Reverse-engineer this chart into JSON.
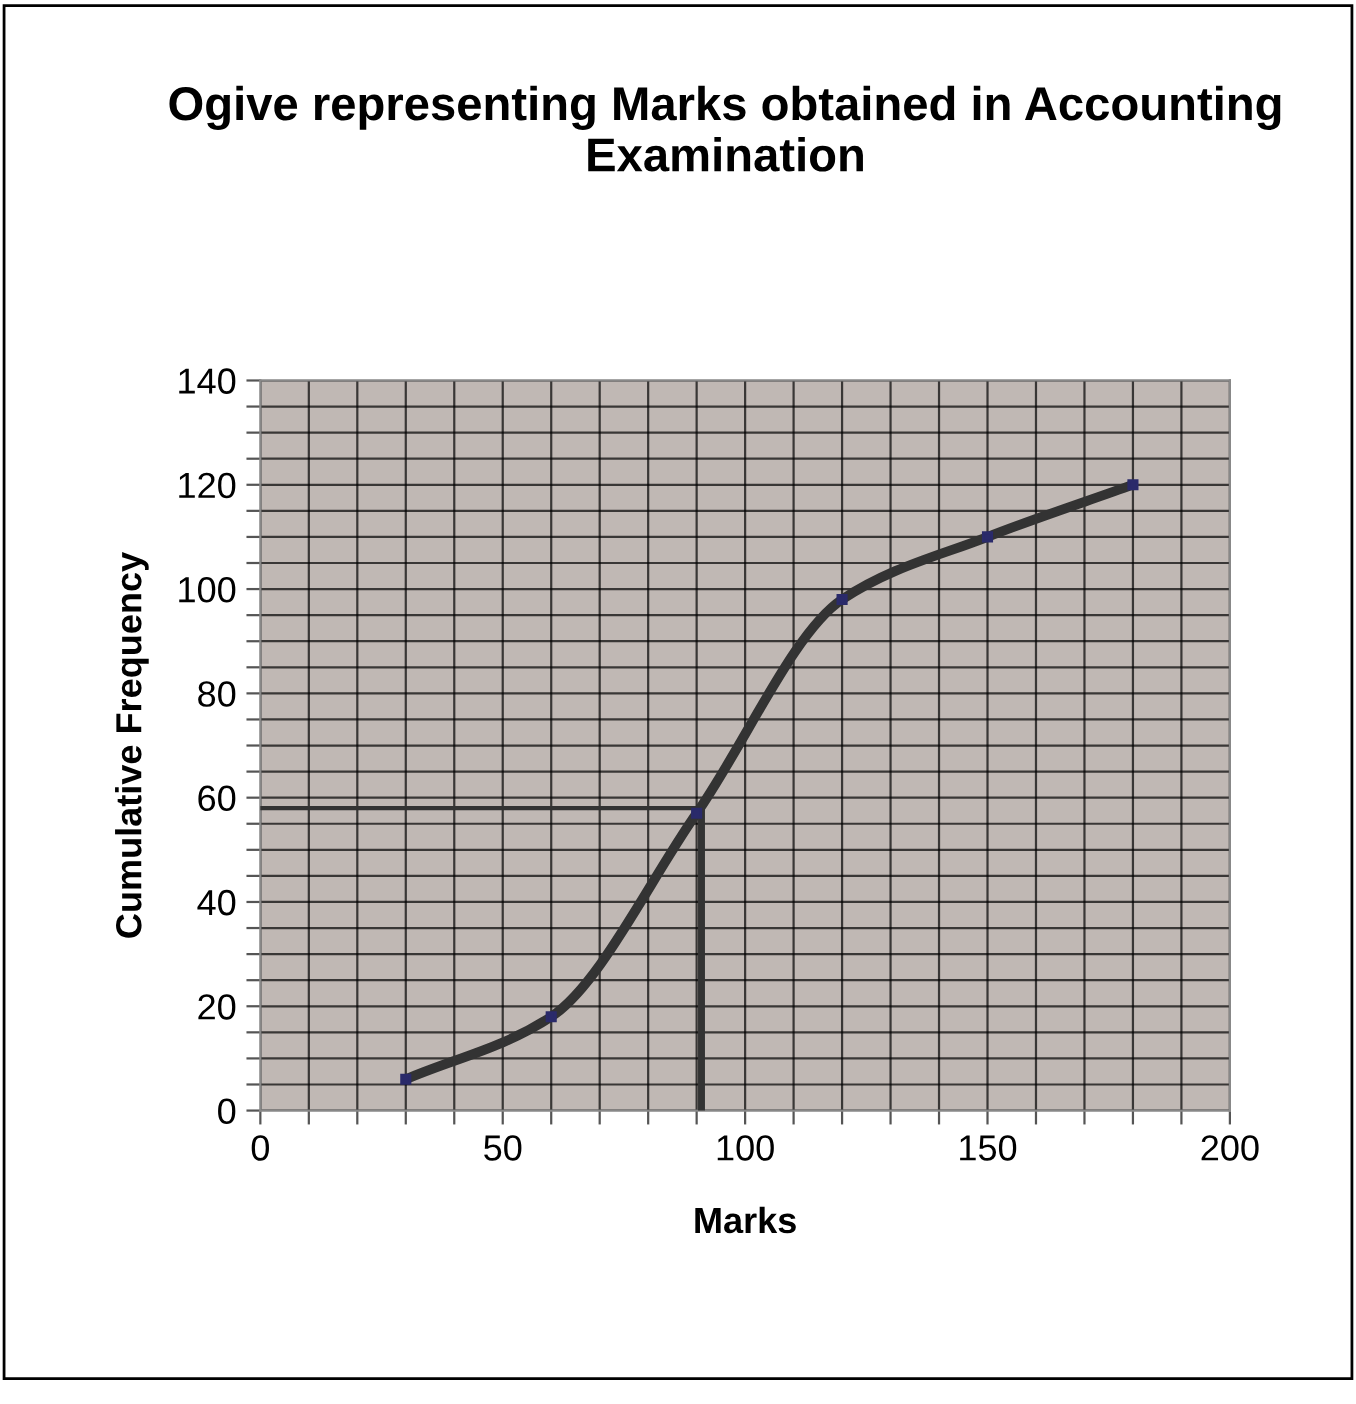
{
  "chart_data": {
    "type": "line",
    "title": "Ogive representing Marks obtained in Accounting Examination",
    "xlabel": "Marks",
    "ylabel": "Cumulative Frequency",
    "x": [
      30,
      60,
      90,
      120,
      150,
      180
    ],
    "series": [
      {
        "color": "#333333",
        "values": [
          6,
          18,
          57,
          98,
          110,
          120
        ],
        "marker": "square"
      }
    ],
    "ref_lines": [
      {
        "axis": "y",
        "value": 58,
        "color": "#333333"
      },
      {
        "axis": "x",
        "value": 91,
        "color": "#333333"
      }
    ],
    "xlim": [
      0,
      200
    ],
    "ylim": [
      0,
      140
    ],
    "xticks": [
      0,
      {
        "value": 10,
        "label": null
      },
      {
        "value": 20,
        "label": null
      },
      {
        "value": 30,
        "label": null
      },
      {
        "value": 40,
        "label": null
      },
      50,
      {
        "value": 60,
        "label": null
      },
      {
        "value": 70,
        "label": null
      },
      {
        "value": 80,
        "label": null
      },
      {
        "value": 90,
        "label": null
      },
      100,
      {
        "value": 110,
        "label": null
      },
      {
        "value": 120,
        "label": null
      },
      {
        "value": 130,
        "label": null
      },
      {
        "value": 140,
        "label": null
      },
      150,
      {
        "value": 160,
        "label": null
      },
      {
        "value": 170,
        "label": null
      },
      {
        "value": 180,
        "label": null
      },
      {
        "value": 190,
        "label": null
      },
      200
    ],
    "yticks": [
      0,
      {
        "value": 5,
        "label": null
      },
      {
        "value": 10,
        "label": null
      },
      {
        "value": 15,
        "label": null
      },
      20,
      {
        "value": 25,
        "label": null
      },
      {
        "value": 30,
        "label": null
      },
      {
        "value": 35,
        "label": null
      },
      40,
      {
        "value": 45,
        "label": null
      },
      {
        "value": 50,
        "label": null
      },
      {
        "value": 55,
        "label": null
      },
      60,
      {
        "value": 65,
        "label": null
      },
      {
        "value": 70,
        "label": null
      },
      {
        "value": 75,
        "label": null
      },
      80,
      {
        "value": 85,
        "label": null
      },
      {
        "value": 90,
        "label": null
      },
      {
        "value": 95,
        "label": null
      },
      100,
      {
        "value": 105,
        "label": null
      },
      {
        "value": 110,
        "label": null
      },
      {
        "value": 115,
        "label": null
      },
      120,
      {
        "value": 125,
        "label": null
      },
      {
        "value": 130,
        "label": null
      },
      {
        "value": 135,
        "label": null
      },
      140
    ],
    "grid": true,
    "legend": false
  }
}
